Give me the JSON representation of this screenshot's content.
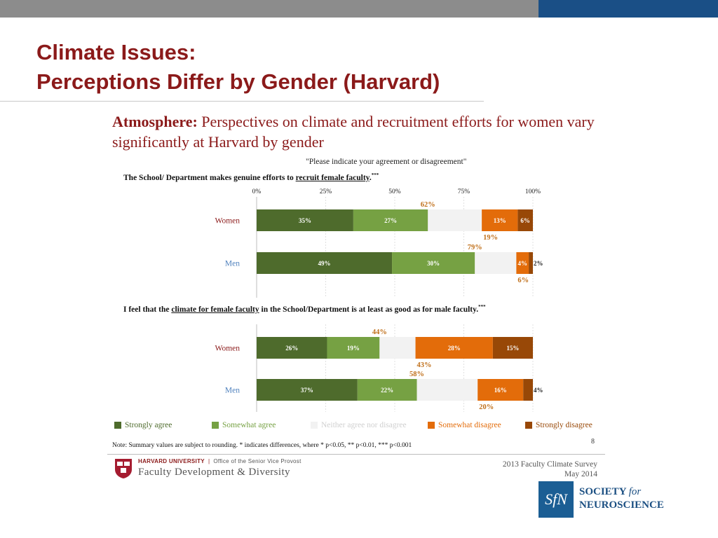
{
  "slide": {
    "title_line1": "Climate Issues:",
    "title_line2": "Perceptions Differ by Gender (Harvard)",
    "headline_bold": "Atmosphere:",
    "headline_rest": " Perspectives on climate and recruitment efforts for women vary significantly at Harvard by gender",
    "prompt": "\"Please indicate your agreement or disagreement\"",
    "note": "Note: Summary values are subject to rounding.  * indicates differences, where * p<0.05, ** p<0.01, *** p<0.001",
    "page_number": "8"
  },
  "questions": [
    {
      "pre": "The School/ Department makes genuine efforts to ",
      "underlined": "recruit female faculty",
      "post": ".",
      "sig": "***"
    },
    {
      "pre": "I feel that the ",
      "underlined": "climate for female faculty",
      "post": " in the School/Department is at least as good as for male faculty.",
      "sig": "***"
    }
  ],
  "footer": {
    "university": "HARVARD UNIVERSITY",
    "office": "Office of the Senior Vice Provost",
    "unit": "Faculty Development & Diversity",
    "survey": "2013 Faculty Climate Survey",
    "date": "May 2014",
    "sfn_mark": "SfN",
    "sfn_line1": "SOCIETY ",
    "sfn_for": "for",
    "sfn_line2": "NEUROSCIENCE"
  },
  "chart_data": {
    "type": "bar",
    "orientation": "horizontal-stacked",
    "axis_ticks": [
      "0%",
      "25%",
      "50%",
      "75%",
      "100%"
    ],
    "xlim": [
      0,
      100
    ],
    "categories": [
      "Strongly agree",
      "Somewhat agree",
      "Neither agree nor disagree",
      "Somewhat disagree",
      "Strongly disagree"
    ],
    "colors": [
      "#4e6b2c",
      "#76a143",
      "#f2f2f2",
      "#e36c0a",
      "#984807"
    ],
    "panels": [
      {
        "rows": [
          {
            "label": "Women",
            "label_color": "#8b1a1a",
            "values": [
              35,
              27,
              19.5,
              13,
              5.5
            ],
            "labels": [
              "35%",
              "27%",
              "",
              "13%",
              "6%"
            ],
            "agree_total": "62%",
            "disagree_total": "19%"
          },
          {
            "label": "Men",
            "label_color": "#4f81bd",
            "values": [
              49,
              30,
              15,
              4.5,
              1.5
            ],
            "labels": [
              "49%",
              "30%",
              "",
              "4%",
              "2%"
            ],
            "agree_total": "79%",
            "disagree_total": "6%"
          }
        ]
      },
      {
        "rows": [
          {
            "label": "Women",
            "label_color": "#8b1a1a",
            "values": [
              25.5,
              19,
              13,
              28,
              14.5
            ],
            "labels": [
              "26%",
              "19%",
              "",
              "28%",
              "15%"
            ],
            "agree_total": "44%",
            "disagree_total": "43%"
          },
          {
            "label": "Men",
            "label_color": "#4f81bd",
            "values": [
              36.5,
              21.5,
              22,
              16.5,
              3.5
            ],
            "labels": [
              "37%",
              "22%",
              "",
              "16%",
              "4%"
            ],
            "agree_total": "58%",
            "disagree_total": "20%"
          }
        ]
      }
    ],
    "legend": [
      {
        "label": "Strongly agree",
        "color": "#4e6b2c",
        "text_color": "#4e6b2c"
      },
      {
        "label": "Somewhat agree",
        "color": "#76a143",
        "text_color": "#76a143"
      },
      {
        "label": "Neither agree nor disagree",
        "color": "#f2f2f2",
        "text_color": "#d0d0d0"
      },
      {
        "label": "Somewhat disagree",
        "color": "#e36c0a",
        "text_color": "#e36c0a"
      },
      {
        "label": "Strongly disagree",
        "color": "#984807",
        "text_color": "#984807"
      }
    ],
    "summary_color": "#c0701b"
  }
}
